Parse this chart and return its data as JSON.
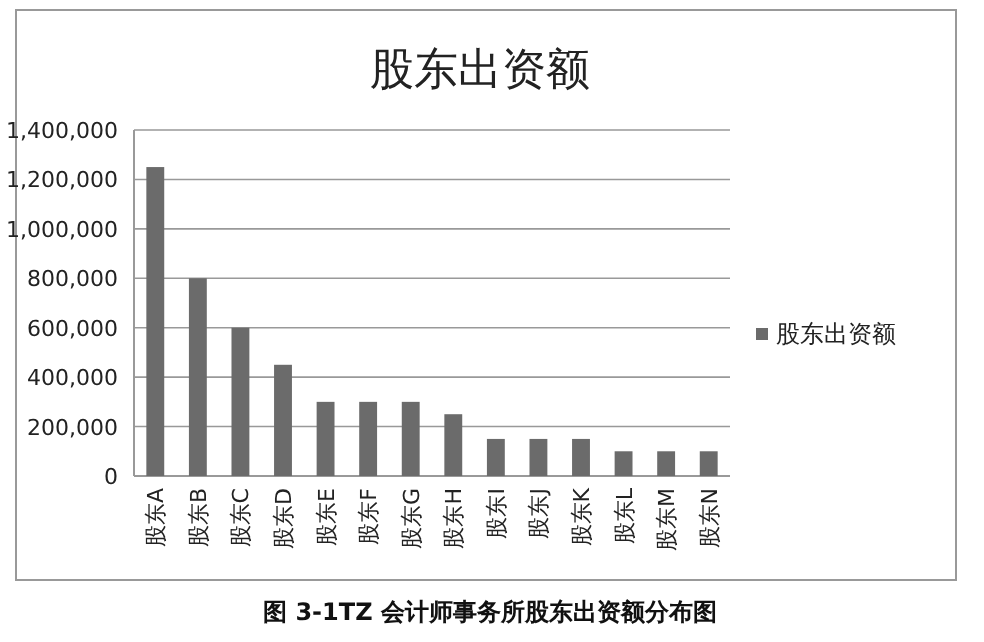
{
  "chart_data": {
    "type": "bar",
    "title": "股东出资额",
    "categories": [
      "股东A",
      "股东B",
      "股东C",
      "股东D",
      "股东E",
      "股东F",
      "股东G",
      "股东H",
      "股东I",
      "股东J",
      "股东K",
      "股东L",
      "股东M",
      "股东N"
    ],
    "series": [
      {
        "name": "股东出资额",
        "color": "#6b6b6b",
        "values": [
          1250000,
          800000,
          600000,
          450000,
          300000,
          300000,
          300000,
          250000,
          150000,
          150000,
          150000,
          100000,
          100000,
          100000
        ]
      }
    ],
    "ylim": [
      0,
      1400000
    ],
    "yticks": [
      {
        "value": 0,
        "label": "0"
      },
      {
        "value": 200000,
        "label": "200,000"
      },
      {
        "value": 400000,
        "label": "400,000"
      },
      {
        "value": 600000,
        "label": "600,000"
      },
      {
        "value": 800000,
        "label": "800,000"
      },
      {
        "value": 1000000,
        "label": "1,000,000"
      },
      {
        "value": 1200000,
        "label": "1,200,000"
      },
      {
        "value": 1400000,
        "label": "1,400,000"
      }
    ],
    "grid": "y",
    "legend": "right",
    "annotations": [
      "图 3-1TZ 会计师事务所股东出资额分布图"
    ]
  }
}
